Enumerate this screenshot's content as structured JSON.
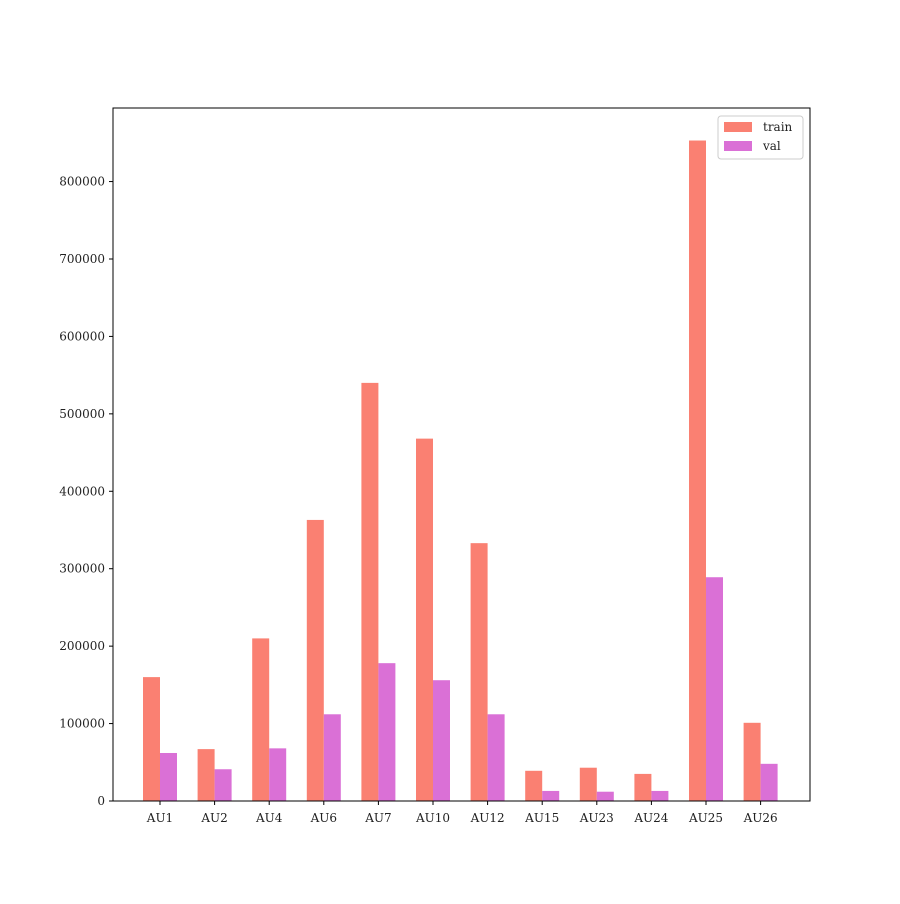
{
  "chart_data": {
    "type": "bar",
    "categories": [
      "AU1",
      "AU2",
      "AU4",
      "AU6",
      "AU7",
      "AU10",
      "AU12",
      "AU15",
      "AU23",
      "AU24",
      "AU25",
      "AU26"
    ],
    "series": [
      {
        "name": "train",
        "color": "#fa8072",
        "values": [
          160000,
          67000,
          210000,
          363000,
          540000,
          468000,
          333000,
          39000,
          43000,
          35000,
          853000,
          101000
        ]
      },
      {
        "name": "val",
        "color": "#da70d6",
        "values": [
          62000,
          41000,
          68000,
          112000,
          178000,
          156000,
          112000,
          13000,
          12000,
          13000,
          289000,
          48000
        ]
      }
    ],
    "yticks": [
      0,
      100000,
      200000,
      300000,
      400000,
      500000,
      600000,
      700000,
      800000
    ],
    "ylim": [
      0,
      895000
    ],
    "title": "",
    "xlabel": "",
    "ylabel": "",
    "grid": false,
    "legend_position": "top-right"
  }
}
